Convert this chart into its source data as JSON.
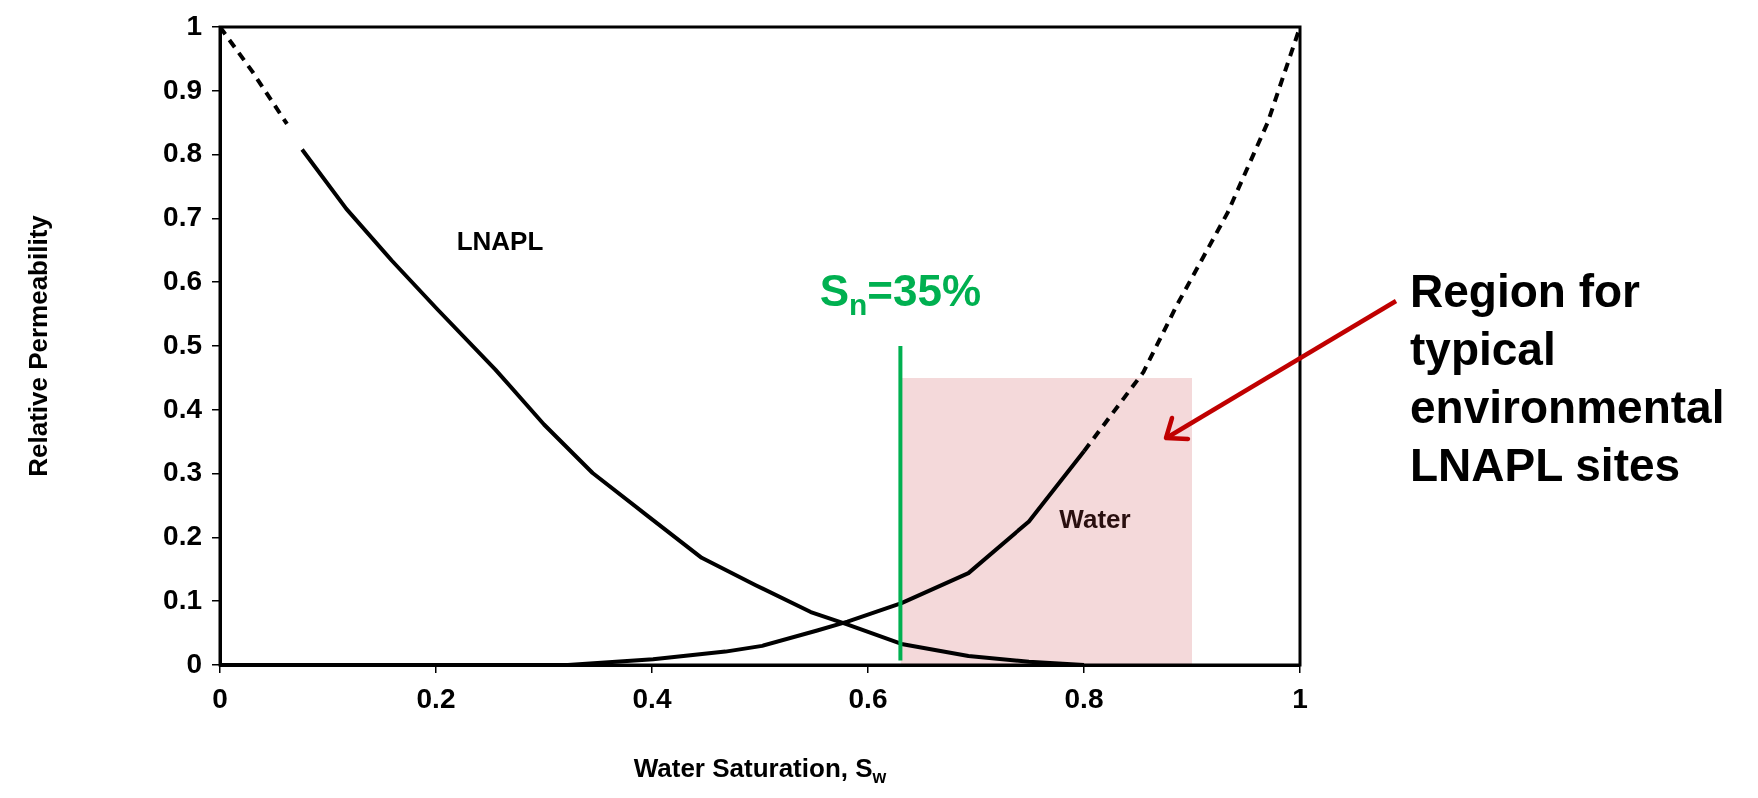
{
  "chart_data": {
    "type": "line",
    "xlabel": "Water Saturation, S$_{w}$",
    "ylabel": "Relative Permeability",
    "xlim": [
      0,
      1
    ],
    "xticks": [
      0,
      0.2,
      0.4,
      0.6,
      0.8,
      1
    ],
    "ylim": [
      0,
      1
    ],
    "yticks": [
      0,
      0.1,
      0.2,
      0.3,
      0.4,
      0.5,
      0.6,
      0.7,
      0.8,
      0.9,
      1
    ],
    "grid": false,
    "legend": false,
    "marker": "none",
    "series": [
      {
        "type": "area",
        "color": "#f4d9da",
        "x": [
          0.63,
          0.9
        ],
        "values": [
          0.45,
          0.45
        ]
      },
      {
        "color": "#000000",
        "line_style": "dashed",
        "x": [
          0,
          0.03,
          0.062
        ],
        "values": [
          1,
          0.93,
          0.848
        ]
      },
      {
        "color": "#000000",
        "line_style": "solid",
        "x": [
          0.076,
          0.117,
          0.159,
          0.201,
          0.255,
          0.3,
          0.345,
          0.395,
          0.446,
          0.496,
          0.547,
          0.58,
          0.631,
          0.693,
          0.749,
          0.8
        ],
        "values": [
          0.808,
          0.715,
          0.634,
          0.558,
          0.463,
          0.377,
          0.301,
          0.235,
          0.168,
          0.125,
          0.083,
          0.064,
          0.033,
          0.014,
          0.005,
          0
        ]
      },
      {
        "color": "#000000",
        "line_style": "solid",
        "x": [
          0,
          0.322,
          0.401,
          0.468,
          0.502,
          0.553,
          0.581,
          0.631,
          0.693,
          0.749,
          0.8
        ],
        "values": [
          0,
          0,
          0.009,
          0.021,
          0.03,
          0.054,
          0.068,
          0.097,
          0.144,
          0.225,
          0.335
        ]
      },
      {
        "color": "#000000",
        "line_style": "dashed",
        "x": [
          0.8,
          0.855,
          0.886,
          0.933,
          0.97,
          1
        ],
        "values": [
          0.335,
          0.459,
          0.564,
          0.709,
          0.85,
          1
        ]
      },
      {
        "name": "S$_{n}$=35%",
        "color": "#00b050",
        "line_style": "solid",
        "x": [
          0.63,
          0.63
        ],
        "values": [
          0.007,
          0.5
        ]
      }
    ],
    "annotations": [
      "LNAPL",
      "Water",
      "Region for typical environmental LNAPL sites"
    ]
  }
}
